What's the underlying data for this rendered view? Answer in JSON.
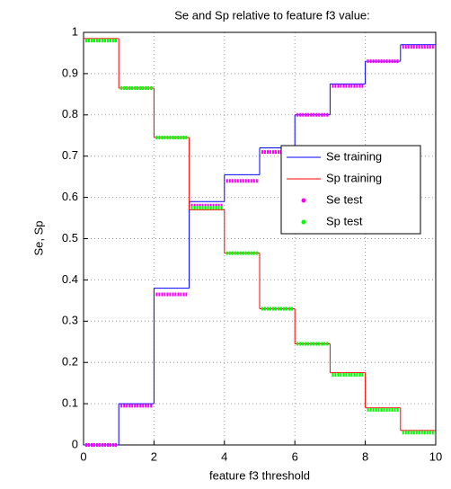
{
  "chart_data": {
    "type": "step",
    "title": "Se and Sp relative to feature f3 value:",
    "xlabel": "feature f3 threshold",
    "ylabel": "Se, Sp",
    "x": [
      0,
      1,
      2,
      3,
      4,
      5,
      6,
      7,
      8,
      9
    ],
    "series": [
      {
        "name": "Se training",
        "color": "#0000ff",
        "style": "line",
        "values": [
          0,
          0.1,
          0.38,
          0.59,
          0.655,
          0.72,
          0.8,
          0.875,
          0.93,
          0.97
        ]
      },
      {
        "name": "Sp training",
        "color": "#ff0000",
        "style": "line",
        "values": [
          0.985,
          0.865,
          0.745,
          0.57,
          0.465,
          0.33,
          0.245,
          0.175,
          0.09,
          0.035
        ]
      },
      {
        "name": "Se test",
        "color": "#ff00ff",
        "style": "dots",
        "values": [
          0,
          0.095,
          0.365,
          0.58,
          0.64,
          0.71,
          0.8,
          0.87,
          0.93,
          0.965
        ]
      },
      {
        "name": "Sp test",
        "color": "#00ff00",
        "style": "dots",
        "values": [
          0.98,
          0.865,
          0.745,
          0.575,
          0.465,
          0.33,
          0.245,
          0.17,
          0.085,
          0.03
        ]
      }
    ],
    "xlim": [
      0,
      10
    ],
    "xticks": [
      0,
      2,
      4,
      6,
      8,
      10
    ],
    "ylim": [
      0,
      1
    ],
    "yticks": [
      0,
      0.1,
      0.2,
      0.3,
      0.4,
      0.5,
      0.6,
      0.7,
      0.8,
      0.9,
      1
    ],
    "grid": true,
    "legend": "right"
  }
}
